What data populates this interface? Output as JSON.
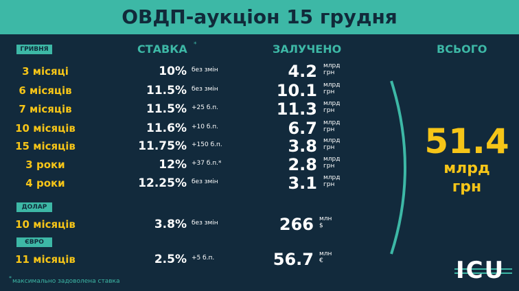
{
  "title": "ОВДП-аукціон 15 грудня",
  "headers": {
    "rate": "СТАВКА",
    "rate_mark": "*",
    "raised": "ЗАЛУЧЕНО",
    "total": "ВСЬОГО"
  },
  "sections": [
    {
      "label": "ГРИВНЯ",
      "rows": [
        {
          "term": "3 місяці",
          "rate": "10%",
          "change": "без змін",
          "amount": "4.2",
          "unit": [
            "млрд",
            "грн"
          ]
        },
        {
          "term": "6 місяців",
          "rate": "11.5%",
          "change": "без змін",
          "amount": "10.1",
          "unit": [
            "млрд",
            "грн"
          ]
        },
        {
          "term": "7 місяців",
          "rate": "11.5%",
          "change": "+25 б.п.",
          "amount": "11.3",
          "unit": [
            "млрд",
            "грн"
          ]
        },
        {
          "term": "10 місяців",
          "rate": "11.6%",
          "change": "+10 б.п.",
          "amount": "6.7",
          "unit": [
            "млрд",
            "грн"
          ]
        },
        {
          "term": "15 місяців",
          "rate": "11.75%",
          "change": "+150 б.п.",
          "amount": "3.8",
          "unit": [
            "млрд",
            "грн"
          ]
        },
        {
          "term": "3 роки",
          "rate": "12%",
          "change": "+37 б.п.*",
          "amount": "2.8",
          "unit": [
            "млрд",
            "грн"
          ]
        },
        {
          "term": "4 роки",
          "rate": "12.25%",
          "change": "без змін",
          "amount": "3.1",
          "unit": [
            "млрд",
            "грн"
          ]
        }
      ]
    },
    {
      "label": "ДОЛАР",
      "rows": [
        {
          "term": "10 місяців",
          "rate": "3.8%",
          "change": "без змін",
          "amount": "266",
          "unit": [
            "млн",
            "$"
          ]
        }
      ]
    },
    {
      "label": "ЄВРО",
      "rows": [
        {
          "term": "11 місяців",
          "rate": "2.5%",
          "change": "+5 б.п.",
          "amount": "56.7",
          "unit": [
            "млн",
            "€"
          ]
        }
      ]
    }
  ],
  "total": {
    "value": "51.4",
    "unit": [
      "млрд",
      "грн"
    ]
  },
  "footnote": {
    "mark": "*",
    "text": "максимально задоволена ставка"
  },
  "logo": "ICU"
}
